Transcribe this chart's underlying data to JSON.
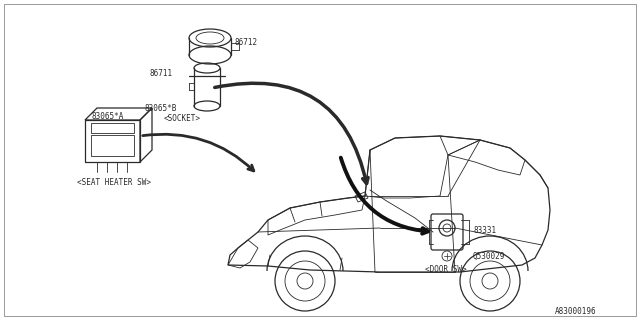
{
  "bg_color": "#ffffff",
  "line_color": "#2a2a2a",
  "text_color": "#2a2a2a",
  "diagram_id": "A83000196",
  "part_86712_label": "86712",
  "part_86711_label": "86711",
  "part_83065B_label": "83065*B",
  "part_83065A_label": "83065*A",
  "part_83331_label": "83331",
  "part_Q530029_label": "Q530029",
  "callout_socket": "<SOCKET>",
  "callout_seat": "<SEAT HEATER SW>",
  "callout_door": "<DOOR SW>"
}
